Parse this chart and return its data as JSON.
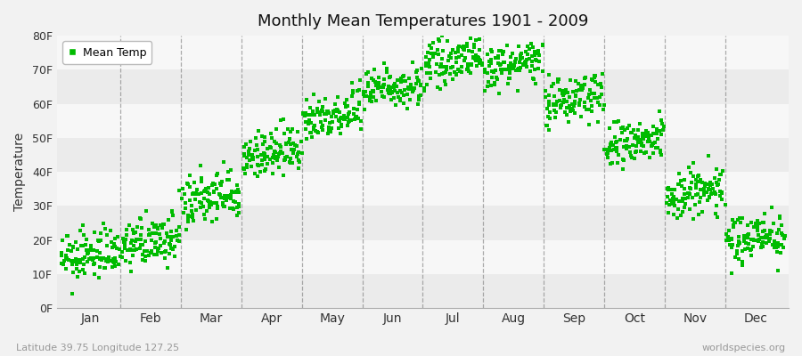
{
  "title": "Monthly Mean Temperatures 1901 - 2009",
  "ylabel": "Temperature",
  "xlabel_labels": [
    "Jan",
    "Feb",
    "Mar",
    "Apr",
    "May",
    "Jun",
    "Jul",
    "Aug",
    "Sep",
    "Oct",
    "Nov",
    "Dec"
  ],
  "ytick_labels": [
    "0F",
    "10F",
    "20F",
    "30F",
    "40F",
    "50F",
    "60F",
    "70F",
    "80F"
  ],
  "ytick_values": [
    0,
    10,
    20,
    30,
    40,
    50,
    60,
    70,
    80
  ],
  "ylim": [
    0,
    80
  ],
  "dot_color": "#00bb00",
  "dot_size": 5,
  "legend_label": "Mean Temp",
  "subtitle_left": "Latitude 39.75 Longitude 127.25",
  "subtitle_right": "worldspecies.org",
  "background_color": "#f2f2f2",
  "band_colors": [
    "#ebebeb",
    "#f7f7f7"
  ],
  "grid_color": "#777777",
  "num_years": 109,
  "monthly_means_F": [
    15.5,
    19.5,
    32.0,
    45.5,
    57.0,
    65.0,
    72.5,
    71.5,
    61.5,
    48.5,
    34.0,
    21.0
  ],
  "monthly_stds_F": [
    3.5,
    3.5,
    4.0,
    3.5,
    3.5,
    3.0,
    3.0,
    3.0,
    3.5,
    3.5,
    4.0,
    3.5
  ],
  "monthly_trend_F": [
    3.0,
    3.0,
    3.0,
    3.0,
    3.0,
    3.0,
    3.0,
    3.0,
    3.0,
    3.0,
    3.0,
    3.0
  ]
}
